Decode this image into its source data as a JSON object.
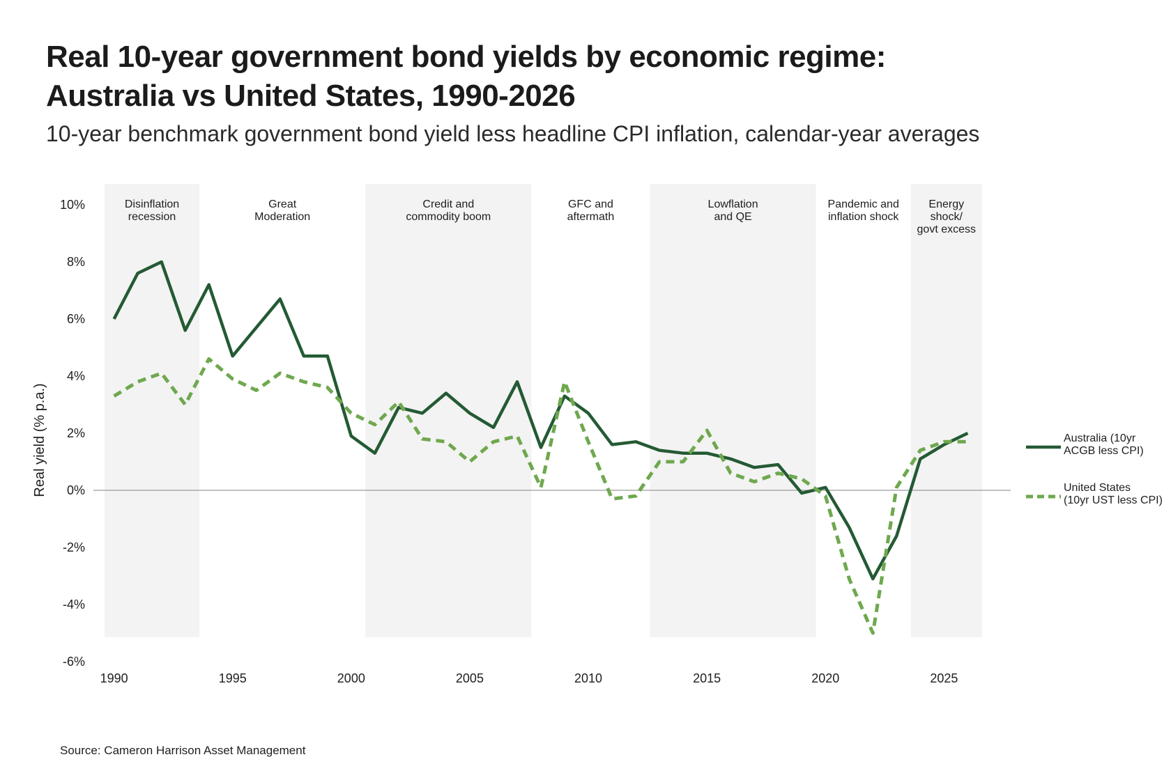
{
  "title": {
    "line1": "Real 10-year government bond yields by economic regime:",
    "line2": "Australia vs United States, 1990-2026"
  },
  "subtitle": "10-year benchmark government bond yield less headline CPI inflation, calendar-year averages",
  "source": "Source: Cameron Harrison Asset Management",
  "colors": {
    "australia": "#245a34",
    "united_states": "#6fa84f",
    "regime_band": "#f3f3f3",
    "zero_line": "#9a9a9a"
  },
  "chart_data": {
    "type": "line",
    "ylabel": "Real yield (% p.a.)",
    "xlabel": "",
    "xlim": [
      1989.6,
      2026.4
    ],
    "ylim": [
      -6,
      10
    ],
    "x_ticks": [
      1990,
      1995,
      2000,
      2005,
      2010,
      2015,
      2020,
      2025
    ],
    "y_ticks": [
      10,
      8,
      6,
      4,
      2,
      0,
      -2,
      -4,
      -6
    ],
    "y_tick_labels": [
      "10%",
      "8%",
      "6%",
      "4%",
      "2%",
      "0%",
      "-2%",
      "-4%",
      "-6%"
    ],
    "grid": false,
    "zero_line": true,
    "legend_position": "right",
    "x": [
      1990,
      1991,
      1992,
      1993,
      1994,
      1995,
      1996,
      1997,
      1998,
      1999,
      2000,
      2001,
      2002,
      2003,
      2004,
      2005,
      2006,
      2007,
      2008,
      2009,
      2010,
      2011,
      2012,
      2013,
      2014,
      2015,
      2016,
      2017,
      2018,
      2019,
      2020,
      2021,
      2022,
      2023,
      2024,
      2025,
      2026
    ],
    "series": [
      {
        "name": "Australia (10yr ACGB less CPI)",
        "legend_lines": [
          "Australia (10yr",
          "ACGB less CPI)"
        ],
        "style": "solid",
        "values": [
          6.0,
          7.6,
          8.0,
          5.6,
          7.2,
          4.7,
          5.7,
          6.7,
          4.7,
          4.7,
          1.9,
          1.3,
          2.9,
          2.7,
          3.4,
          2.7,
          2.2,
          3.8,
          1.5,
          3.3,
          2.7,
          1.6,
          1.7,
          1.4,
          1.3,
          1.3,
          1.1,
          0.8,
          0.9,
          -0.1,
          0.1,
          -1.3,
          -3.1,
          -1.6,
          1.1,
          1.6,
          2.0
        ]
      },
      {
        "name": "United States (10yr UST less CPI)",
        "legend_lines": [
          "United States",
          "(10yr UST less CPI)"
        ],
        "style": "dashed",
        "values": [
          3.3,
          3.8,
          4.1,
          3.0,
          4.6,
          3.9,
          3.5,
          4.1,
          3.8,
          3.6,
          2.7,
          2.3,
          3.1,
          1.8,
          1.7,
          1.0,
          1.7,
          1.9,
          0.1,
          3.8,
          1.7,
          -0.3,
          -0.2,
          1.0,
          1.0,
          2.1,
          0.6,
          0.3,
          0.6,
          0.4,
          -0.2,
          -3.1,
          -5.0,
          0.1,
          1.4,
          1.7,
          1.7
        ]
      }
    ],
    "regimes": [
      {
        "label_lines": [
          "Disinflation",
          "recession"
        ],
        "start": 1989.6,
        "end": 1993.6,
        "shaded": true
      },
      {
        "label_lines": [
          "Great",
          "Moderation"
        ],
        "start": 1993.6,
        "end": 2000.6,
        "shaded": false
      },
      {
        "label_lines": [
          "Credit and",
          "commodity boom"
        ],
        "start": 2000.6,
        "end": 2007.6,
        "shaded": true
      },
      {
        "label_lines": [
          "GFC and",
          "aftermath"
        ],
        "start": 2007.6,
        "end": 2012.6,
        "shaded": false
      },
      {
        "label_lines": [
          "Lowflation",
          "and QE"
        ],
        "start": 2012.6,
        "end": 2019.6,
        "shaded": true
      },
      {
        "label_lines": [
          "Pandemic and",
          "inflation shock"
        ],
        "start": 2019.6,
        "end": 2023.6,
        "shaded": false
      },
      {
        "label_lines": [
          "Energy",
          "shock/",
          "govt excess"
        ],
        "start": 2023.6,
        "end": 2026.6,
        "shaded": true
      }
    ]
  }
}
